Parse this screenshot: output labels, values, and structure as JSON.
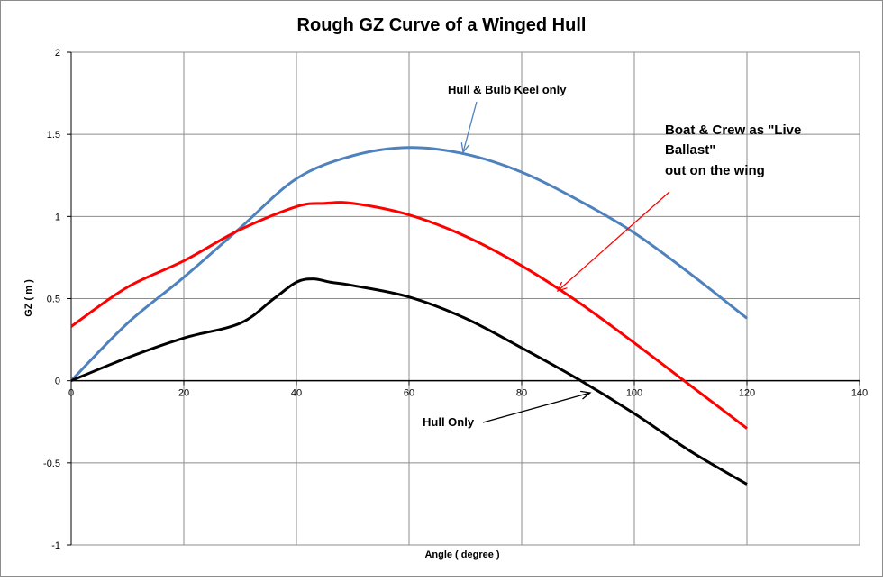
{
  "chart_data": {
    "type": "line",
    "title": "Rough GZ Curve of a Winged Hull",
    "xlabel": "Angle ( degree )",
    "ylabel": "GZ ( m )",
    "xlim": [
      0,
      140
    ],
    "ylim": [
      -1,
      2
    ],
    "x_ticks": [
      0,
      20,
      40,
      60,
      80,
      100,
      120,
      140
    ],
    "y_ticks": [
      -1,
      -0.5,
      0,
      0.5,
      1,
      1.5,
      2
    ],
    "y_tick_labels": [
      "-1",
      "-0.5",
      "0",
      "0.5",
      "1",
      "1.5",
      "2"
    ],
    "grid": true,
    "legend": "none",
    "series": [
      {
        "color": "#4f81bd",
        "x": [
          0,
          10,
          20,
          30,
          40,
          50,
          60,
          70,
          80,
          90,
          100,
          110,
          120
        ],
        "values": [
          0,
          0.35,
          0.63,
          0.93,
          1.23,
          1.37,
          1.42,
          1.38,
          1.27,
          1.1,
          0.9,
          0.65,
          0.38
        ]
      },
      {
        "color": "#ff0000",
        "x": [
          0,
          10,
          20,
          30,
          40,
          45,
          50,
          60,
          70,
          80,
          90,
          100,
          110,
          120
        ],
        "values": [
          0.33,
          0.57,
          0.73,
          0.92,
          1.06,
          1.08,
          1.08,
          1.01,
          0.88,
          0.7,
          0.48,
          0.23,
          -0.03,
          -0.29
        ]
      },
      {
        "color": "#000000",
        "x": [
          0,
          10,
          20,
          30,
          36,
          40,
          43,
          46,
          50,
          60,
          70,
          80,
          90,
          100,
          110,
          120
        ],
        "values": [
          0,
          0.14,
          0.26,
          0.35,
          0.5,
          0.6,
          0.62,
          0.6,
          0.58,
          0.51,
          0.38,
          0.2,
          0.01,
          -0.2,
          -0.43,
          -0.63
        ]
      }
    ],
    "annotations": [
      {
        "text": "Hull & Bulb Keel only"
      },
      {
        "lines": [
          "Boat & Crew as \"Live",
          "Ballast\"",
          "out on the wing"
        ]
      },
      {
        "text": "Hull Only"
      }
    ]
  }
}
